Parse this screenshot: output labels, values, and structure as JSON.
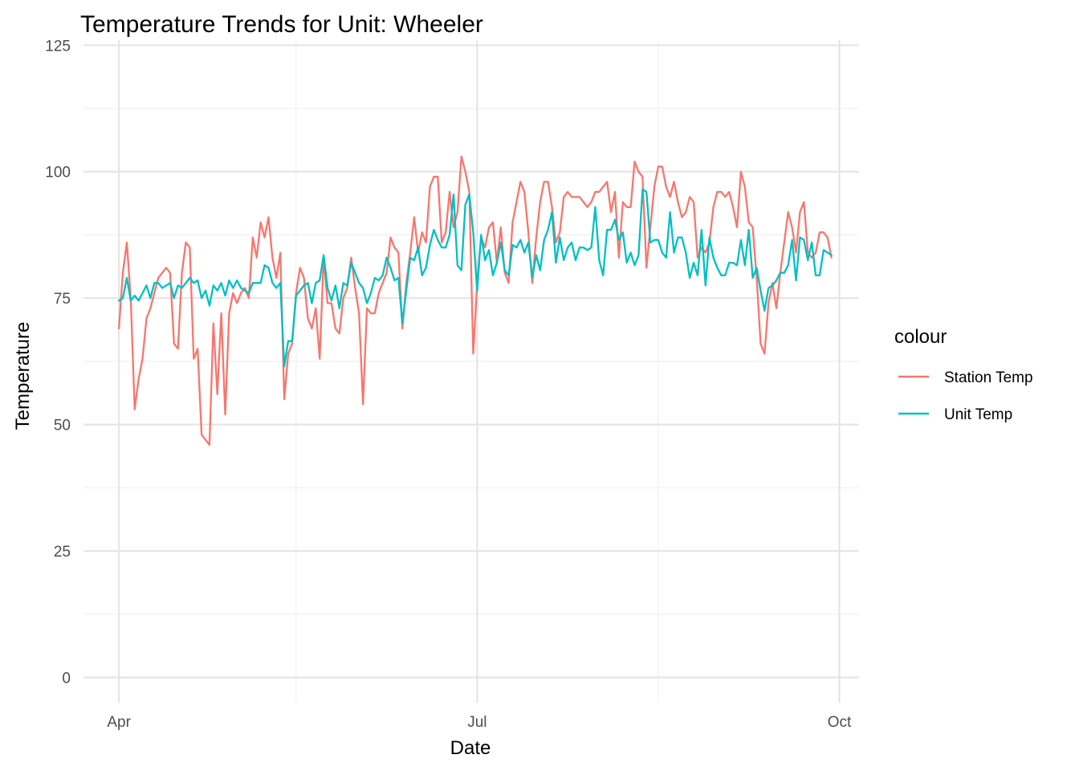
{
  "chart_data": {
    "type": "line",
    "title": "Temperature Trends for Unit: Wheeler",
    "xlabel": "Date",
    "ylabel": "Temperature",
    "x_start": "2023-04-01",
    "x_end": "2023-09-30",
    "xlim": [
      "2023-03-23",
      "2023-10-06"
    ],
    "ylim": [
      -5,
      126
    ],
    "x_ticks": [
      {
        "date": "2023-04-01",
        "label": "Apr"
      },
      {
        "date": "2023-07-01",
        "label": "Jul"
      },
      {
        "date": "2023-10-01",
        "label": "Oct"
      }
    ],
    "x_minor_ticks": [
      "2023-05-16",
      "2023-08-16"
    ],
    "y_ticks": [
      0,
      25,
      50,
      75,
      100,
      125
    ],
    "y_minor_ticks": [
      12.5,
      37.5,
      62.5,
      87.5,
      112.5
    ],
    "grid": true,
    "legend": {
      "title": "colour",
      "position": "right"
    },
    "series": [
      {
        "name": "Station Temp",
        "color": "#F8766D",
        "values": [
          69,
          80,
          86,
          75,
          53,
          59,
          63,
          71,
          73,
          76,
          79,
          80,
          81,
          80,
          66,
          65,
          80,
          86,
          85,
          63,
          65,
          48,
          47,
          46,
          70,
          56,
          72,
          52,
          72,
          76,
          74,
          76,
          77,
          75,
          87,
          83,
          90,
          87,
          91,
          83,
          79,
          84,
          55,
          64,
          66,
          76,
          81,
          79,
          71,
          69,
          73,
          63,
          83,
          74,
          74,
          69,
          68,
          75,
          77,
          83,
          77,
          72,
          54,
          73,
          72,
          72,
          76,
          78,
          80,
          87,
          85,
          84,
          69,
          78,
          84,
          91,
          84,
          88,
          86,
          97,
          99,
          99,
          86,
          88,
          96,
          89,
          92,
          103,
          100,
          96,
          64,
          78,
          87,
          85,
          89,
          90,
          82,
          89,
          80,
          78,
          90,
          94,
          98,
          96,
          88,
          78,
          87,
          94,
          98,
          98,
          93,
          86,
          88,
          95,
          96,
          95,
          95,
          95,
          94,
          93,
          94,
          96,
          96,
          97,
          98,
          92,
          96,
          83,
          94,
          93,
          93,
          102,
          100,
          99,
          81,
          89,
          97,
          101,
          101,
          97,
          95,
          98,
          94,
          91,
          92,
          95,
          94,
          83,
          85,
          84,
          86,
          93,
          96,
          96,
          95,
          96,
          93,
          89,
          100,
          97,
          90,
          89,
          79,
          66,
          64,
          74,
          78,
          73,
          80,
          86,
          92,
          89,
          84,
          92,
          94,
          84,
          83,
          84,
          88,
          88,
          87,
          83
        ]
      },
      {
        "name": "Unit Temp",
        "color": "#00BFC4",
        "values": [
          74.5,
          75,
          79,
          74.5,
          75.5,
          74.5,
          76,
          77.5,
          75,
          78,
          78,
          77,
          77.5,
          78,
          75,
          77.5,
          77,
          78,
          79,
          78,
          78.5,
          75,
          76.5,
          73.5,
          77.5,
          76.5,
          78,
          75.5,
          78.5,
          77,
          78.5,
          77,
          76.5,
          76,
          78,
          78,
          78,
          81.5,
          81,
          78,
          77,
          78,
          61.5,
          66.5,
          66.5,
          75.5,
          76.5,
          77.5,
          78,
          74,
          78,
          78.5,
          83.5,
          77,
          74.5,
          77.5,
          73,
          78,
          77.5,
          82,
          80,
          78,
          77,
          74,
          76,
          79,
          78.5,
          79.5,
          83,
          81,
          78.5,
          79,
          70,
          76.5,
          83,
          82.5,
          85,
          79.5,
          81,
          85.5,
          88.5,
          86.5,
          85,
          85,
          87.5,
          95.5,
          81.5,
          80.5,
          93.5,
          95.5,
          88,
          76.5,
          87.5,
          82.5,
          84.5,
          79.5,
          82,
          86,
          80.5,
          79.5,
          85.5,
          85,
          86.5,
          84,
          86,
          79,
          83.5,
          80.5,
          86.5,
          88.5,
          92,
          82,
          87,
          82.5,
          85,
          86,
          82.5,
          85,
          85,
          84.5,
          85,
          93,
          82.5,
          79.5,
          88.5,
          88.5,
          90.5,
          86.5,
          88,
          82,
          84,
          81.5,
          83.5,
          96.5,
          96,
          86,
          86.5,
          86.5,
          84,
          83,
          92,
          84,
          87,
          87,
          84,
          79,
          82,
          79.5,
          88.5,
          77.5,
          87,
          83,
          81,
          79.5,
          79.5,
          82,
          82,
          81.5,
          86.5,
          81.5,
          88.5,
          79,
          81,
          76.5,
          72.5,
          77,
          77.5,
          78.5,
          80,
          80,
          81.5,
          86.5,
          78.5,
          87,
          86.5,
          82.5,
          86,
          79.5,
          79.5,
          84.5,
          84,
          83.5
        ]
      }
    ]
  }
}
